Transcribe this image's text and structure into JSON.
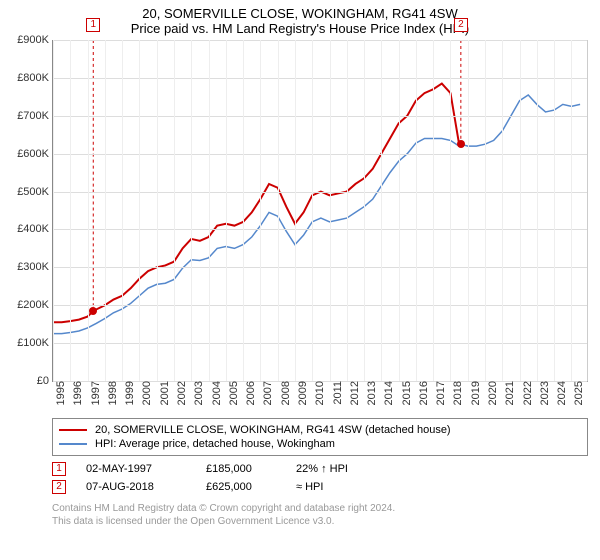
{
  "title": "20, SOMERVILLE CLOSE, WOKINGHAM, RG41 4SW",
  "subtitle": "Price paid vs. HM Land Registry's House Price Index (HPI)",
  "chart": {
    "type": "line",
    "background_color": "#ffffff",
    "grid_color": "#dddddd",
    "axis_color": "#888888",
    "y": {
      "min": 0,
      "max": 900000,
      "step": 100000,
      "prefix": "£",
      "suffix": "K",
      "divisor": 1000
    },
    "x": {
      "min": 1995,
      "max": 2025.9,
      "ticks": [
        1995,
        1996,
        1997,
        1998,
        1999,
        2000,
        2001,
        2002,
        2003,
        2004,
        2005,
        2006,
        2007,
        2008,
        2009,
        2010,
        2011,
        2012,
        2013,
        2014,
        2015,
        2016,
        2017,
        2018,
        2019,
        2020,
        2021,
        2022,
        2023,
        2024,
        2025
      ]
    },
    "series": [
      {
        "name": "20, SOMERVILLE CLOSE, WOKINGHAM, RG41 4SW (detached house)",
        "color": "#cc0000",
        "width": 2,
        "points": [
          [
            1995,
            155000
          ],
          [
            1995.5,
            155000
          ],
          [
            1996,
            158000
          ],
          [
            1996.5,
            162000
          ],
          [
            1997,
            170000
          ],
          [
            1997.33,
            185000
          ],
          [
            1998,
            200000
          ],
          [
            1998.5,
            215000
          ],
          [
            1999,
            225000
          ],
          [
            1999.5,
            245000
          ],
          [
            2000,
            270000
          ],
          [
            2000.5,
            290000
          ],
          [
            2001,
            300000
          ],
          [
            2001.5,
            305000
          ],
          [
            2002,
            315000
          ],
          [
            2002.5,
            350000
          ],
          [
            2003,
            375000
          ],
          [
            2003.5,
            370000
          ],
          [
            2004,
            380000
          ],
          [
            2004.5,
            410000
          ],
          [
            2005,
            415000
          ],
          [
            2005.5,
            410000
          ],
          [
            2006,
            420000
          ],
          [
            2006.5,
            445000
          ],
          [
            2007,
            480000
          ],
          [
            2007.5,
            520000
          ],
          [
            2008,
            510000
          ],
          [
            2008.5,
            460000
          ],
          [
            2009,
            415000
          ],
          [
            2009.5,
            445000
          ],
          [
            2010,
            490000
          ],
          [
            2010.5,
            500000
          ],
          [
            2011,
            490000
          ],
          [
            2011.5,
            495000
          ],
          [
            2012,
            500000
          ],
          [
            2012.5,
            520000
          ],
          [
            2013,
            535000
          ],
          [
            2013.5,
            560000
          ],
          [
            2014,
            600000
          ],
          [
            2014.5,
            640000
          ],
          [
            2015,
            680000
          ],
          [
            2015.5,
            700000
          ],
          [
            2016,
            740000
          ],
          [
            2016.5,
            760000
          ],
          [
            2017,
            770000
          ],
          [
            2017.5,
            785000
          ],
          [
            2018,
            760000
          ],
          [
            2018.5,
            625000
          ],
          [
            2018.6,
            625000
          ]
        ]
      },
      {
        "name": "HPI: Average price, detached house, Wokingham",
        "color": "#5588cc",
        "width": 1.5,
        "points": [
          [
            1995,
            125000
          ],
          [
            1995.5,
            125000
          ],
          [
            1996,
            128000
          ],
          [
            1996.5,
            132000
          ],
          [
            1997,
            140000
          ],
          [
            1997.5,
            152000
          ],
          [
            1998,
            165000
          ],
          [
            1998.5,
            180000
          ],
          [
            1999,
            190000
          ],
          [
            1999.5,
            205000
          ],
          [
            2000,
            225000
          ],
          [
            2000.5,
            245000
          ],
          [
            2001,
            255000
          ],
          [
            2001.5,
            258000
          ],
          [
            2002,
            268000
          ],
          [
            2002.5,
            298000
          ],
          [
            2003,
            320000
          ],
          [
            2003.5,
            318000
          ],
          [
            2004,
            325000
          ],
          [
            2004.5,
            350000
          ],
          [
            2005,
            355000
          ],
          [
            2005.5,
            350000
          ],
          [
            2006,
            360000
          ],
          [
            2006.5,
            380000
          ],
          [
            2007,
            410000
          ],
          [
            2007.5,
            445000
          ],
          [
            2008,
            435000
          ],
          [
            2008.5,
            395000
          ],
          [
            2009,
            360000
          ],
          [
            2009.5,
            385000
          ],
          [
            2010,
            420000
          ],
          [
            2010.5,
            430000
          ],
          [
            2011,
            420000
          ],
          [
            2011.5,
            425000
          ],
          [
            2012,
            430000
          ],
          [
            2012.5,
            445000
          ],
          [
            2013,
            460000
          ],
          [
            2013.5,
            480000
          ],
          [
            2014,
            515000
          ],
          [
            2014.5,
            550000
          ],
          [
            2015,
            580000
          ],
          [
            2015.5,
            600000
          ],
          [
            2016,
            628000
          ],
          [
            2016.5,
            640000
          ],
          [
            2017,
            640000
          ],
          [
            2017.5,
            640000
          ],
          [
            2018,
            635000
          ],
          [
            2018.5,
            620000
          ],
          [
            2018.6,
            625000
          ],
          [
            2019,
            620000
          ],
          [
            2019.5,
            620000
          ],
          [
            2020,
            625000
          ],
          [
            2020.5,
            635000
          ],
          [
            2021,
            660000
          ],
          [
            2021.5,
            700000
          ],
          [
            2022,
            740000
          ],
          [
            2022.5,
            755000
          ],
          [
            2023,
            730000
          ],
          [
            2023.5,
            710000
          ],
          [
            2024,
            715000
          ],
          [
            2024.5,
            730000
          ],
          [
            2025,
            725000
          ],
          [
            2025.5,
            730000
          ]
        ]
      }
    ],
    "markers": [
      {
        "n": "1",
        "x": 1997.33,
        "y": 185000,
        "color": "#cc0000"
      },
      {
        "n": "2",
        "x": 2018.6,
        "y": 625000,
        "color": "#cc0000"
      }
    ]
  },
  "legend": {
    "items": [
      {
        "color": "#cc0000",
        "label": "20, SOMERVILLE CLOSE, WOKINGHAM, RG41 4SW (detached house)"
      },
      {
        "color": "#5588cc",
        "label": "HPI: Average price, detached house, Wokingham"
      }
    ]
  },
  "sales": [
    {
      "n": "1",
      "color": "#cc0000",
      "date": "02-MAY-1997",
      "price": "£185,000",
      "delta": "22% ↑ HPI"
    },
    {
      "n": "2",
      "color": "#cc0000",
      "date": "07-AUG-2018",
      "price": "£625,000",
      "delta": "≈ HPI"
    }
  ],
  "footer": {
    "line1": "Contains HM Land Registry data © Crown copyright and database right 2024.",
    "line2": "This data is licensed under the Open Government Licence v3.0."
  }
}
